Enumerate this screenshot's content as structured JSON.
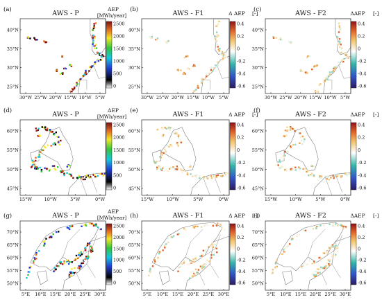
{
  "figure": {
    "panels": [
      {
        "id": "a",
        "letter": "(a)",
        "title": "AWS - P",
        "kind": "P",
        "region": "iberia",
        "cb_title": "AEP",
        "cb_unit": "[MWh/year]",
        "cb_ticks": [
          "2500",
          "2000",
          "1500",
          "1000",
          "500",
          "0"
        ],
        "lat_ticks": [
          "40°N",
          "35°N",
          "30°N",
          "25°N"
        ],
        "lon_ticks": [
          "30°W",
          "25°W",
          "20°W",
          "15°W",
          "10°W",
          "5°W"
        ]
      },
      {
        "id": "b",
        "letter": "(b)",
        "title": "AWS - F1",
        "kind": "F",
        "region": "iberia",
        "cb_title": "Δ AEP",
        "cb_unit": "[-]",
        "cb_ticks": [
          "0.4",
          "0.2",
          "0",
          "-0.2",
          "-0.4",
          "-0.6"
        ],
        "lat_ticks": [
          "40°N",
          "35°N",
          "30°N",
          "25°N"
        ],
        "lon_ticks": [
          "30°W",
          "25°W",
          "20°W",
          "15°W",
          "10°W",
          "5°W"
        ]
      },
      {
        "id": "c",
        "letter": "(c)",
        "title": "AWS - F2",
        "kind": "F",
        "region": "iberia",
        "cb_title": "ΔAEP",
        "cb_unit": "[-]",
        "cb_ticks": [
          "0.4",
          "0.2",
          "0",
          "-0.2",
          "-0.4",
          "-0.6"
        ],
        "lat_ticks": [
          "40°N",
          "35°N",
          "30°N",
          "25°N"
        ],
        "lon_ticks": [
          "30°W",
          "25°W",
          "20°W",
          "15°W",
          "10°W",
          "5°W"
        ]
      },
      {
        "id": "d",
        "letter": "(d)",
        "title": "AWS - P",
        "kind": "P",
        "region": "uk",
        "cb_title": "AEP",
        "cb_unit": "[MWh/year]",
        "cb_ticks": [
          "2500",
          "2000",
          "1500",
          "1000",
          "500",
          "0"
        ],
        "lat_ticks": [
          "60°N",
          "55°N",
          "50°N",
          "45°N"
        ],
        "lon_ticks": [
          "15°W",
          "10°W",
          "5°W",
          "0°W"
        ]
      },
      {
        "id": "e",
        "letter": "(e)",
        "title": "AWS - F1",
        "kind": "F",
        "region": "uk",
        "cb_title": "Δ AEP",
        "cb_unit": "[-]",
        "cb_ticks": [
          "0.4",
          "0.2",
          "0",
          "-0.2",
          "-0.4",
          "-0.6"
        ],
        "lat_ticks": [
          "60°N",
          "55°N",
          "50°N",
          "45°N"
        ],
        "lon_ticks": [
          "15°W",
          "10°W",
          "5°W",
          "0°W"
        ]
      },
      {
        "id": "f",
        "letter": "(f)",
        "title": "AWS - F2",
        "kind": "F",
        "region": "uk",
        "cb_title": "ΔAEP",
        "cb_unit": "[-]",
        "cb_ticks": [
          "0.4",
          "0.2",
          "0",
          "-0.2",
          "-0.4",
          "-0.6"
        ],
        "lat_ticks": [
          "60°N",
          "55°N",
          "50°N",
          "45°N"
        ],
        "lon_ticks": [
          "15°W",
          "10°W",
          "5°W",
          "0°W"
        ]
      },
      {
        "id": "g",
        "letter": "(g)",
        "title": "AWS - P",
        "kind": "P",
        "region": "nordic",
        "cb_title": "AEP",
        "cb_unit": "[MWh/year]",
        "cb_ticks": [
          "2500",
          "2000",
          "1500",
          "1000",
          "500",
          "0"
        ],
        "lat_ticks": [
          "70°N",
          "65°N",
          "60°N",
          "55°N",
          "50°N"
        ],
        "lon_ticks": [
          "5°E",
          "10°E",
          "15°E",
          "20°E",
          "25°E",
          "30°E"
        ]
      },
      {
        "id": "h",
        "letter": "(h)",
        "title": "AWS - F1",
        "kind": "F",
        "region": "nordic",
        "cb_title": "Δ AEP",
        "cb_unit": "[-]",
        "cb_ticks": [
          "0.4",
          "0.2",
          "0",
          "-0.2",
          "-0.4",
          "-0.6"
        ],
        "lat_ticks": [
          "70°N",
          "65°N",
          "60°N",
          "55°N",
          "50°N"
        ],
        "lon_ticks": [
          "5°E",
          "10°E",
          "15°E",
          "20°E",
          "25°E",
          "30°E"
        ]
      },
      {
        "id": "i",
        "letter": "(i)",
        "title": "AWS - F2",
        "kind": "F",
        "region": "nordic",
        "cb_title": "ΔAEP",
        "cb_unit": "[-]",
        "cb_ticks": [
          "0.4",
          "0.2",
          "0",
          "-0.2",
          "-0.4",
          "-0.6"
        ],
        "lat_ticks": [
          "70°N",
          "65°N",
          "60°N",
          "55°N",
          "50°N"
        ],
        "lon_ticks": [
          "5°E",
          "10°E",
          "15°E",
          "20°E",
          "25°E",
          "30°E"
        ]
      }
    ]
  }
}
